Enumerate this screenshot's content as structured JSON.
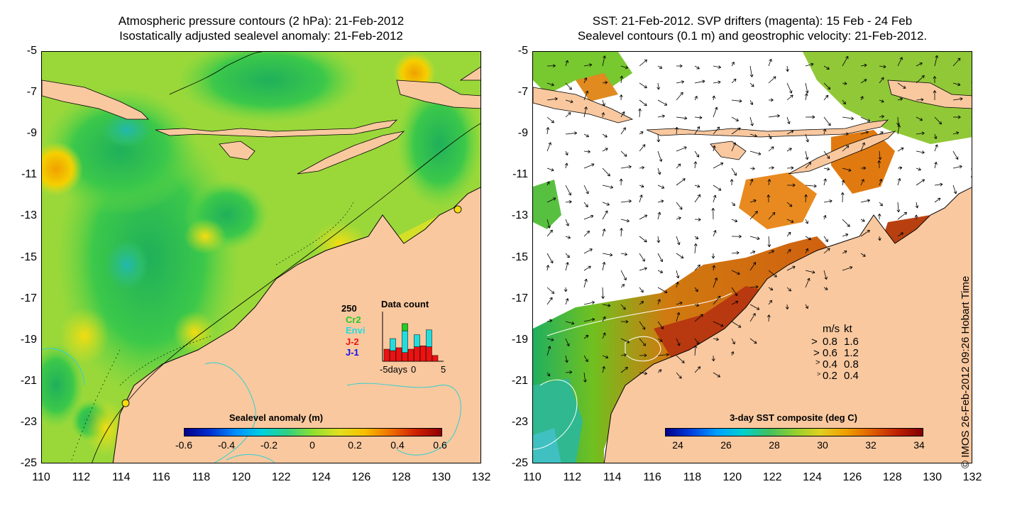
{
  "left_panel": {
    "title_line1": "Atmospheric pressure contours (2 hPa): 21-Feb-2012",
    "title_line2": "Isostatically adjusted sealevel anomaly: 21-Feb-2012",
    "colorbar": {
      "title": "Sealevel anomaly (m)",
      "ticks": [
        "-0.6",
        "-0.4",
        "-0.2",
        "0",
        "0.2",
        "0.4",
        "0.6"
      ]
    },
    "data_count": {
      "title": "Data count",
      "max_label": "250",
      "missions": [
        {
          "name": "Cr2",
          "color": "#22cc22"
        },
        {
          "name": "Envi",
          "color": "#22dddd"
        },
        {
          "name": "J-2",
          "color": "#ee1111"
        },
        {
          "name": "J-1",
          "color": "#1111ee"
        }
      ],
      "x_labels": [
        "-5days",
        "0",
        "5"
      ],
      "bars_j2": [
        0.25,
        0.22,
        0.28,
        0.18,
        0.25,
        0.3,
        0.32,
        0.3,
        0.12
      ],
      "bars_envi": [
        0.0,
        0.25,
        0.0,
        0.45,
        0.0,
        0.25,
        0.0,
        0.35,
        0.0
      ],
      "bars_cr2": [
        0.0,
        0.0,
        0.0,
        0.15,
        0.0,
        0.0,
        0.0,
        0.0,
        0.0
      ]
    }
  },
  "right_panel": {
    "title_line1": "SST: 21-Feb-2012. SVP drifters (magenta): 15 Feb - 24 Feb",
    "title_line2": "Sealevel contours (0.1 m) and geostrophic velocity: 21-Feb-2012.",
    "colorbar": {
      "title": "3-day SST composite (deg C)",
      "ticks": [
        "24",
        "26",
        "28",
        "30",
        "32",
        "34"
      ]
    },
    "velocity_legend": {
      "header_ms": "m/s",
      "header_kt": "kt",
      "rows": [
        {
          "ms": "0.8",
          "kt": "1.6"
        },
        {
          "ms": "0.6",
          "kt": "1.2"
        },
        {
          "ms": "0.4",
          "kt": "0.8"
        },
        {
          "ms": "0.2",
          "kt": "0.4"
        }
      ]
    }
  },
  "axes": {
    "y_ticks": [
      "-5",
      "-7",
      "-9",
      "-11",
      "-13",
      "-15",
      "-17",
      "-19",
      "-21",
      "-23",
      "-25"
    ],
    "x_ticks": [
      "110",
      "112",
      "114",
      "116",
      "118",
      "120",
      "122",
      "124",
      "126",
      "128",
      "130",
      "132"
    ]
  },
  "credit": "© IMOS 26-Feb-2012 09:26 Hobart Time",
  "colors": {
    "land": "#f9c89f",
    "sla_field": "#7fe040",
    "sst_warm": "#e07a10",
    "cloud": "#ffffff"
  }
}
